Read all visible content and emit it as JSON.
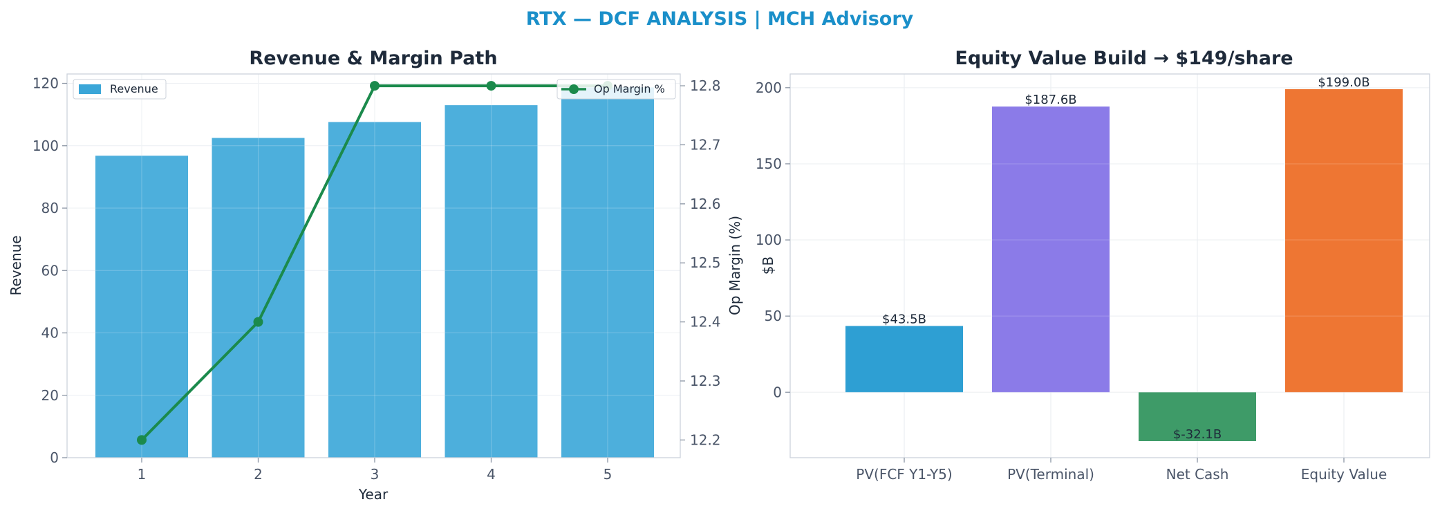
{
  "suptitle": "RTX — DCF ANALYSIS | MCH Advisory",
  "chart_data": [
    {
      "type": "bar",
      "title": "Revenue & Margin Path",
      "xlabel": "Year",
      "ylabel": "Revenue",
      "y2label": "Op Margin (%)",
      "categories": [
        "1",
        "2",
        "3",
        "4",
        "5"
      ],
      "ylim": [
        0,
        123
      ],
      "yticks": [
        0,
        20,
        40,
        60,
        80,
        100,
        120
      ],
      "y2lim": [
        12.17,
        12.82
      ],
      "y2ticks": [
        12.2,
        12.3,
        12.4,
        12.5,
        12.6,
        12.7,
        12.8
      ],
      "grid": true,
      "series": [
        {
          "name": "Revenue",
          "type": "bar",
          "axis": "left",
          "color": "#3aa6d8",
          "values": [
            96.8,
            102.5,
            107.6,
            113.0,
            118.7
          ]
        },
        {
          "name": "Op Margin %",
          "type": "line",
          "axis": "right",
          "color": "#1b8a4c",
          "values": [
            12.2,
            12.4,
            12.8,
            12.8,
            12.8
          ]
        }
      ],
      "legend": [
        {
          "label": "Revenue",
          "placement": "top-left"
        },
        {
          "label": "Op Margin %",
          "placement": "top-right"
        }
      ]
    },
    {
      "type": "bar",
      "title": "Equity Value Build → $149/share",
      "xlabel": "",
      "ylabel": "$B",
      "categories": [
        "PV(FCF Y1-Y5)",
        "PV(Terminal)",
        "Net Cash",
        "Equity Value"
      ],
      "values": [
        43.5,
        187.6,
        -32.1,
        199.0
      ],
      "data_labels": [
        "$43.5B",
        "$187.6B",
        "$-32.1B",
        "$199.0B"
      ],
      "colors": [
        "#2e9fd3",
        "#8b7be8",
        "#3e9b68",
        "#ee7633"
      ],
      "ylim": [
        -43,
        209
      ],
      "yticks": [
        0,
        50,
        100,
        150,
        200
      ],
      "grid": true
    }
  ]
}
